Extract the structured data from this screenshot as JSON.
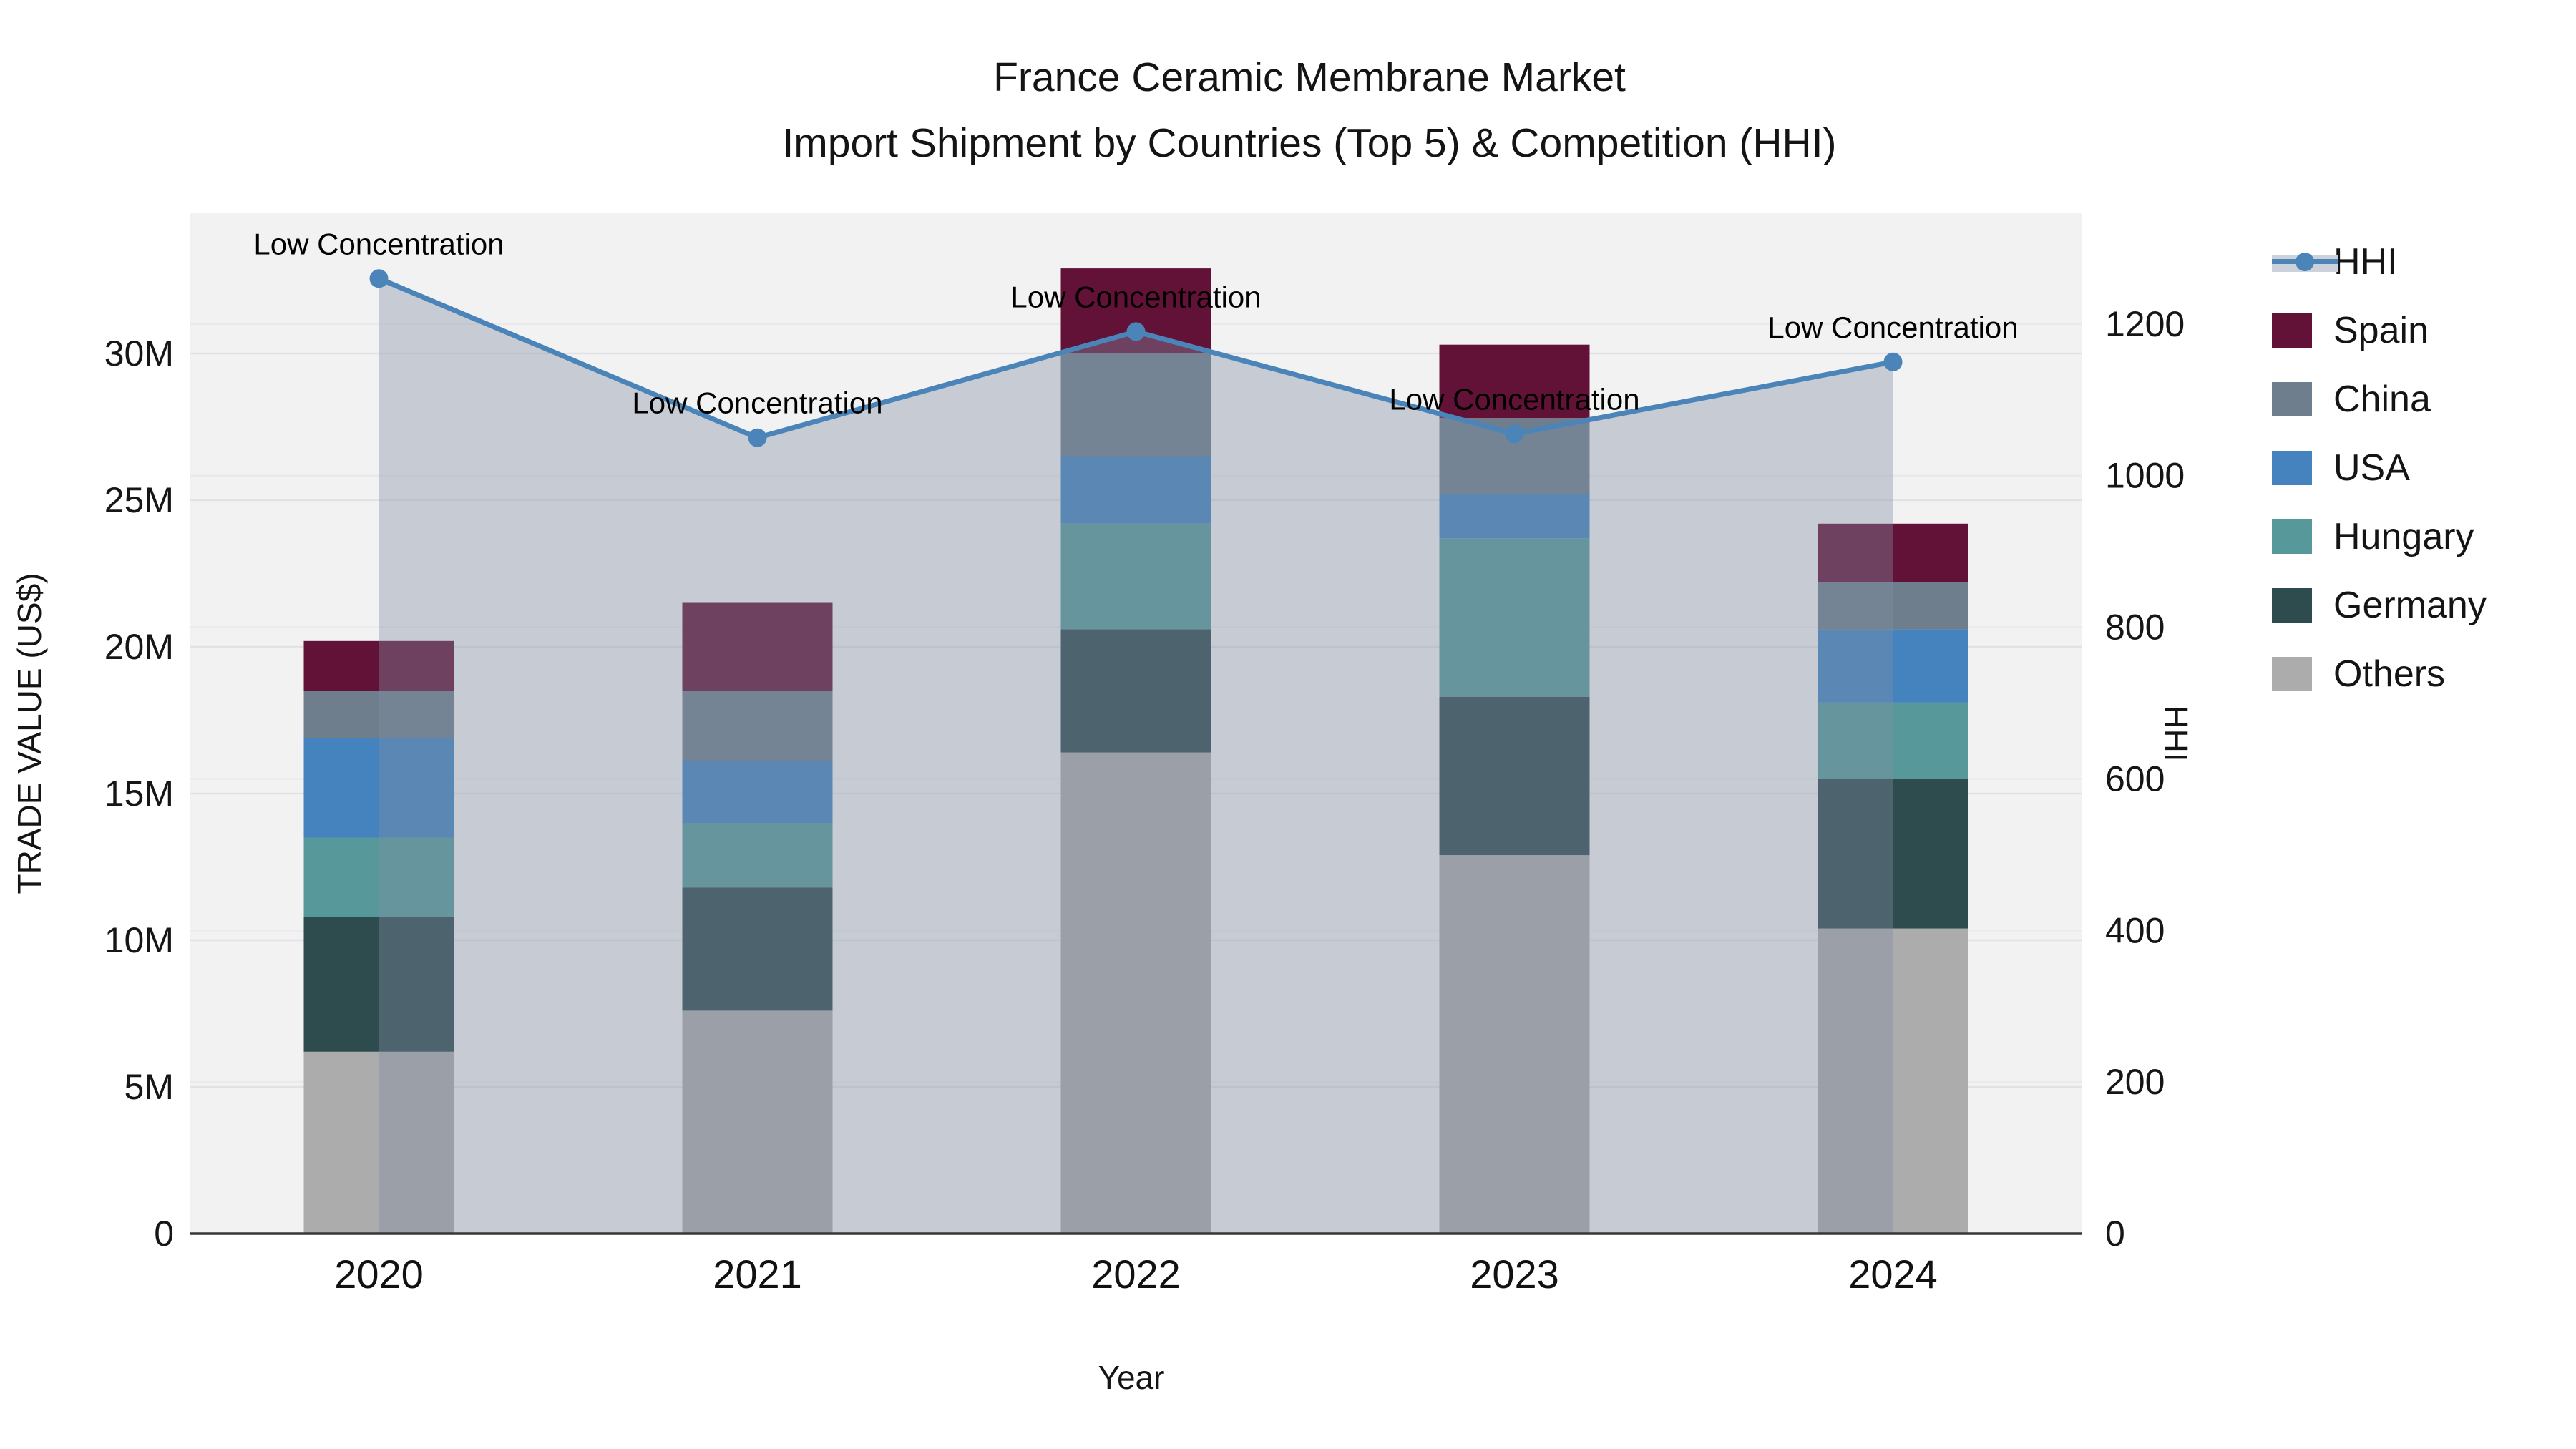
{
  "title": {
    "line1": "France Ceramic Membrane Market",
    "line2": "Import Shipment by Countries (Top 5) & Competition (HHI)"
  },
  "axes": {
    "x_title": "Year",
    "y_left_title": "TRADE VALUE (US$)",
    "y_right_title": "HHI",
    "y_left_tick_labels": [
      "0",
      "5M",
      "10M",
      "15M",
      "20M",
      "25M",
      "30M"
    ],
    "y_right_tick_labels": [
      "0",
      "200",
      "400",
      "600",
      "800",
      "1000",
      "1200"
    ]
  },
  "legend": [
    {
      "name": "HHI",
      "type": "line",
      "color": "#4A84B8"
    },
    {
      "name": "Spain",
      "type": "patch",
      "color": "#621236"
    },
    {
      "name": "China",
      "type": "patch",
      "color": "#6F7E8D"
    },
    {
      "name": "USA",
      "type": "patch",
      "color": "#4483BE"
    },
    {
      "name": "Hungary",
      "type": "patch",
      "color": "#57999B"
    },
    {
      "name": "Germany",
      "type": "patch",
      "color": "#2E4B4E"
    },
    {
      "name": "Others",
      "type": "patch",
      "color": "#ACACAC"
    }
  ],
  "chart_data": {
    "type": "bar",
    "subtype": "stacked-bars-with-line-overlay",
    "categories": [
      "2020",
      "2021",
      "2022",
      "2023",
      "2024"
    ],
    "value_unit": "million US$",
    "stack_order_bottom_to_top": [
      "Others",
      "Germany",
      "Hungary",
      "USA",
      "China",
      "Spain"
    ],
    "series": [
      {
        "name": "Others",
        "color": "#ACACAC",
        "values": [
          6.2,
          7.6,
          16.4,
          12.9,
          10.4
        ]
      },
      {
        "name": "Germany",
        "color": "#2E4B4E",
        "values": [
          4.6,
          4.2,
          4.2,
          5.4,
          5.1
        ]
      },
      {
        "name": "Hungary",
        "color": "#57999B",
        "values": [
          2.7,
          2.2,
          3.6,
          5.4,
          2.6
        ]
      },
      {
        "name": "USA",
        "color": "#4483BE",
        "values": [
          3.4,
          2.1,
          2.3,
          1.5,
          2.5
        ]
      },
      {
        "name": "China",
        "color": "#6F7E8D",
        "values": [
          1.6,
          2.4,
          3.5,
          2.6,
          1.6
        ]
      },
      {
        "name": "Spain",
        "color": "#621236",
        "values": [
          1.7,
          3.0,
          2.9,
          2.5,
          2.0
        ]
      }
    ],
    "bar_totals": [
      20.2,
      21.5,
      32.9,
      30.3,
      24.2
    ],
    "line_series": {
      "name": "HHI",
      "color": "#4A84B8",
      "area_fill": "rgba(130,143,163,0.38)",
      "values": [
        1260,
        1050,
        1190,
        1055,
        1150
      ]
    },
    "annotations": [
      "Low Concentration",
      "Low Concentration",
      "Low Concentration",
      "Low Concentration",
      "Low Concentration"
    ],
    "y_left_axis": {
      "label": "TRADE VALUE (US$)",
      "ticks_millions": [
        0,
        5,
        10,
        15,
        20,
        25,
        30
      ],
      "range_millions": [
        0,
        34.8
      ]
    },
    "y_right_axis": {
      "label": "HHI",
      "ticks": [
        0,
        200,
        400,
        600,
        800,
        1000,
        1200
      ],
      "range": [
        0,
        1347
      ]
    },
    "grid": true,
    "legend_position": "right",
    "plot_background": "#f2f2f3"
  }
}
